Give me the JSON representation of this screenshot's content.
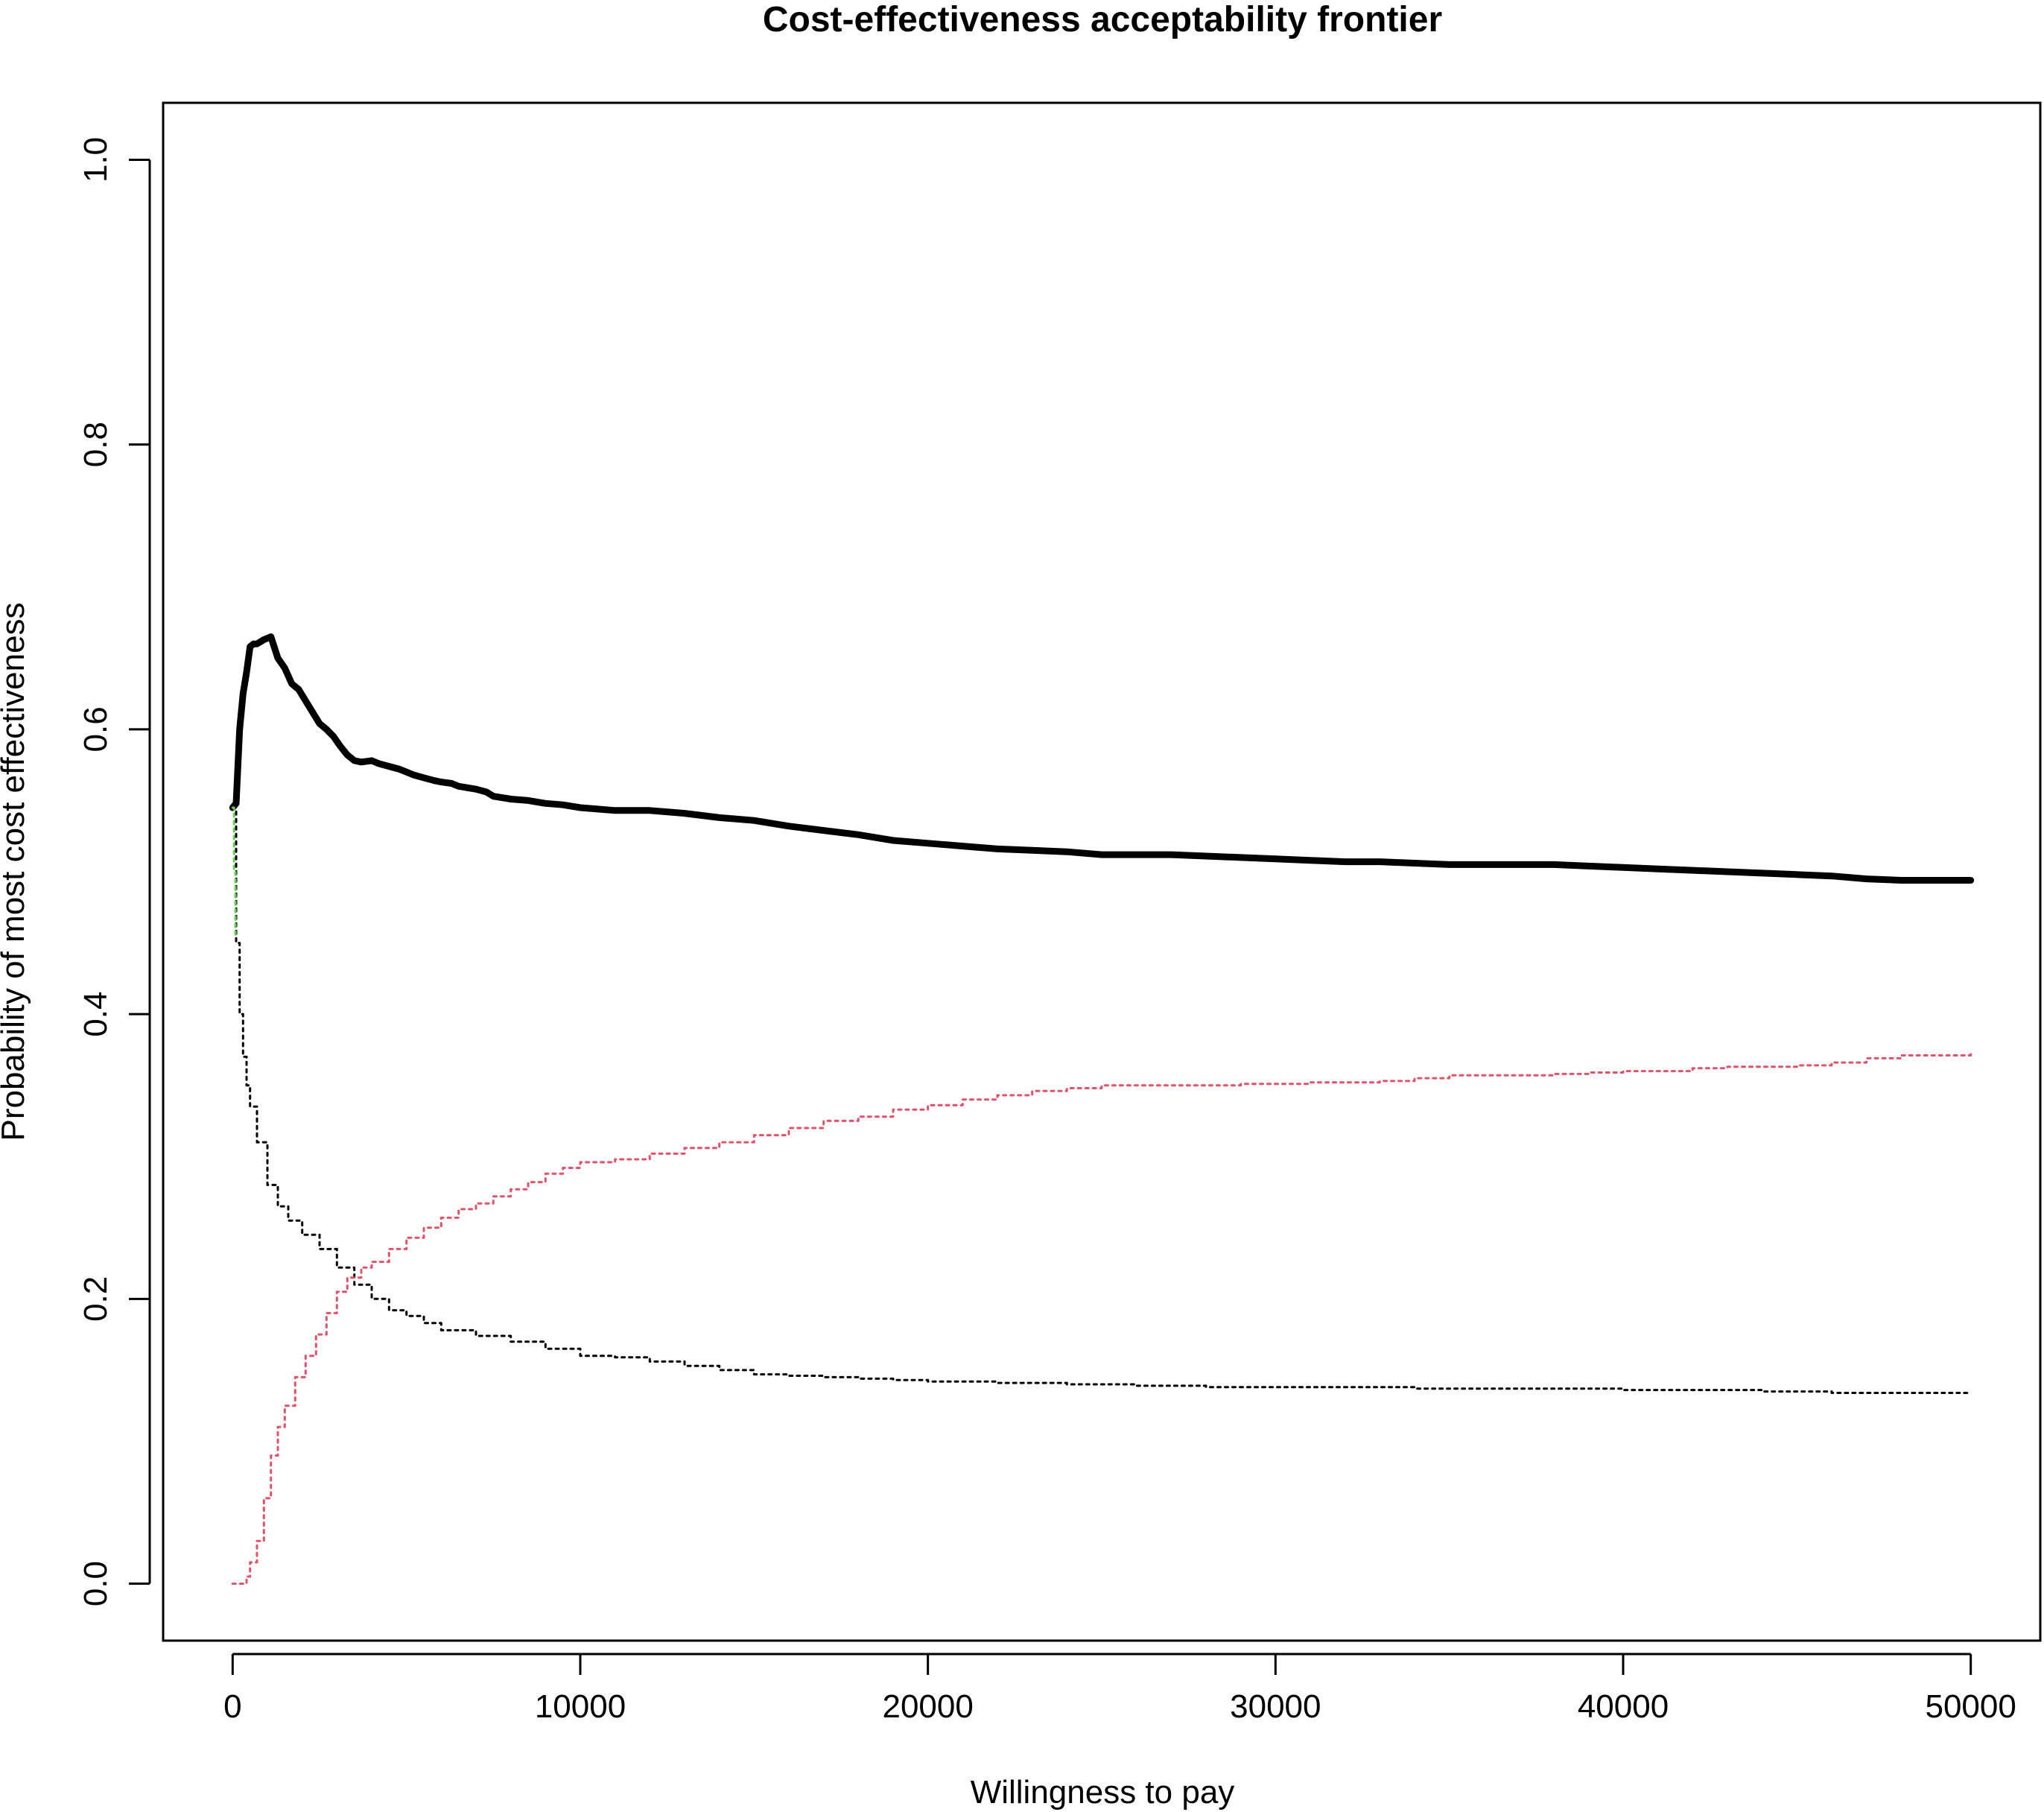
{
  "chart_data": {
    "type": "line",
    "title": "Cost-effectiveness acceptability frontier",
    "xlabel": "Willingness to pay",
    "ylabel": "Probability of most cost effectiveness",
    "xlim": [
      -2000,
      52000
    ],
    "ylim": [
      -0.04,
      1.04
    ],
    "x_ticks": [
      0,
      10000,
      20000,
      30000,
      40000,
      50000
    ],
    "x_tick_labels": [
      "0",
      "10000",
      "20000",
      "30000",
      "40000",
      "50000"
    ],
    "y_ticks": [
      0.0,
      0.2,
      0.4,
      0.6,
      0.8,
      1.0
    ],
    "y_tick_labels": [
      "0.0",
      "0.2",
      "0.4",
      "0.6",
      "0.8",
      "1.0"
    ],
    "grid": false,
    "legend": "none",
    "series": [
      {
        "role": "frontier",
        "color": "#000000",
        "style": "solid-thick",
        "x": [
          0,
          100,
          200,
          300,
          400,
          500,
          600,
          700,
          900,
          1100,
          1300,
          1500,
          1700,
          1900,
          2100,
          2300,
          2500,
          2700,
          2900,
          3100,
          3300,
          3500,
          3700,
          4000,
          4200,
          4500,
          4800,
          5000,
          5200,
          5500,
          5800,
          6000,
          6300,
          6500,
          7000,
          7300,
          7500,
          8000,
          8500,
          9000,
          9500,
          10000,
          10500,
          11000,
          12000,
          13000,
          14000,
          15000,
          16000,
          17000,
          18000,
          19000,
          20000,
          21000,
          22000,
          23000,
          24000,
          25000,
          26000,
          27000,
          28000,
          29000,
          30000,
          31000,
          32000,
          33000,
          34000,
          35000,
          36000,
          37000,
          38000,
          39000,
          40000,
          41000,
          42000,
          43000,
          44000,
          45000,
          46000,
          47000,
          48000,
          49000,
          50000
        ],
        "y": [
          0.545,
          0.548,
          0.6,
          0.625,
          0.64,
          0.658,
          0.66,
          0.66,
          0.663,
          0.665,
          0.65,
          0.643,
          0.632,
          0.628,
          0.62,
          0.612,
          0.604,
          0.6,
          0.595,
          0.588,
          0.582,
          0.578,
          0.577,
          0.578,
          0.576,
          0.574,
          0.572,
          0.57,
          0.568,
          0.566,
          0.564,
          0.563,
          0.562,
          0.56,
          0.558,
          0.556,
          0.553,
          0.551,
          0.55,
          0.548,
          0.547,
          0.545,
          0.544,
          0.543,
          0.543,
          0.541,
          0.538,
          0.536,
          0.532,
          0.529,
          0.526,
          0.522,
          0.52,
          0.518,
          0.516,
          0.515,
          0.514,
          0.512,
          0.512,
          0.512,
          0.511,
          0.51,
          0.509,
          0.508,
          0.507,
          0.507,
          0.506,
          0.505,
          0.505,
          0.505,
          0.505,
          0.504,
          0.503,
          0.502,
          0.501,
          0.5,
          0.499,
          0.498,
          0.497,
          0.495,
          0.494,
          0.494,
          0.494
        ]
      },
      {
        "role": "option-1",
        "color": "#000000",
        "style": "dotted",
        "x": [
          0,
          100,
          200,
          300,
          400,
          500,
          700,
          1000,
          1300,
          1600,
          2000,
          2500,
          3000,
          3500,
          4000,
          4500,
          5000,
          5500,
          6000,
          7000,
          8000,
          9000,
          10000,
          11000,
          12000,
          13000,
          14000,
          15000,
          16000,
          17000,
          18000,
          19000,
          20000,
          22000,
          24000,
          26000,
          28000,
          30000,
          32000,
          34000,
          36000,
          38000,
          40000,
          42000,
          44000,
          46000,
          48000,
          50000
        ],
        "y": [
          0.545,
          0.45,
          0.4,
          0.37,
          0.35,
          0.335,
          0.31,
          0.28,
          0.265,
          0.255,
          0.245,
          0.235,
          0.222,
          0.21,
          0.2,
          0.192,
          0.188,
          0.183,
          0.178,
          0.174,
          0.17,
          0.165,
          0.16,
          0.159,
          0.156,
          0.153,
          0.15,
          0.147,
          0.146,
          0.145,
          0.144,
          0.143,
          0.142,
          0.141,
          0.14,
          0.139,
          0.138,
          0.138,
          0.138,
          0.137,
          0.137,
          0.137,
          0.136,
          0.136,
          0.135,
          0.134,
          0.134,
          0.134
        ]
      },
      {
        "role": "option-2",
        "color": "#DF536B",
        "style": "dotted",
        "x": [
          0,
          200,
          400,
          500,
          700,
          900,
          1100,
          1300,
          1500,
          1800,
          2100,
          2400,
          2700,
          3000,
          3300,
          3700,
          4000,
          4500,
          5000,
          5500,
          6000,
          6500,
          7000,
          7500,
          8000,
          8500,
          9000,
          9500,
          10000,
          11000,
          12000,
          13000,
          14000,
          15000,
          16000,
          17000,
          18000,
          19000,
          20000,
          21000,
          22000,
          23000,
          24000,
          25000,
          27000,
          29000,
          31000,
          33000,
          34000,
          35000,
          37000,
          38000,
          39000,
          40000,
          42000,
          43000,
          45000,
          46000,
          47000,
          48000,
          50000
        ],
        "y": [
          0.0,
          0.0,
          0.005,
          0.015,
          0.03,
          0.06,
          0.09,
          0.11,
          0.125,
          0.145,
          0.16,
          0.175,
          0.19,
          0.205,
          0.215,
          0.222,
          0.226,
          0.235,
          0.243,
          0.25,
          0.257,
          0.263,
          0.267,
          0.272,
          0.277,
          0.282,
          0.288,
          0.292,
          0.296,
          0.298,
          0.302,
          0.306,
          0.31,
          0.315,
          0.32,
          0.325,
          0.328,
          0.333,
          0.336,
          0.34,
          0.343,
          0.346,
          0.348,
          0.35,
          0.35,
          0.351,
          0.352,
          0.353,
          0.355,
          0.357,
          0.357,
          0.358,
          0.359,
          0.36,
          0.362,
          0.363,
          0.364,
          0.366,
          0.369,
          0.371,
          0.372
        ]
      },
      {
        "role": "option-3",
        "color": "#61D04F",
        "style": "dotted",
        "x": [
          0,
          40,
          80
        ],
        "y": [
          0.545,
          0.5,
          0.455
        ]
      }
    ]
  }
}
